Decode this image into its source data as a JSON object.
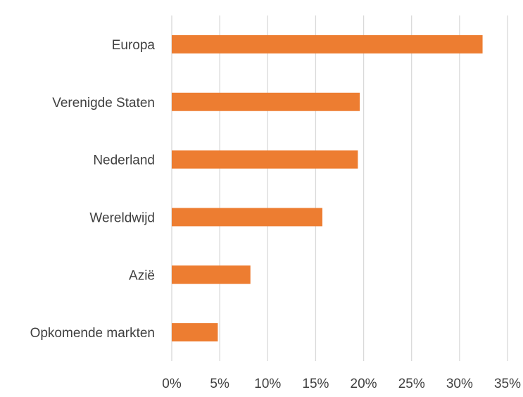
{
  "chart_data": {
    "type": "bar",
    "orientation": "horizontal",
    "categories": [
      "Europa",
      "Verenigde Staten",
      "Nederland",
      "Wereldwijd",
      "Azië",
      "Opkomende markten"
    ],
    "series": [
      {
        "values": [
          32.4,
          19.6,
          19.4,
          15.7,
          8.2,
          4.8
        ]
      }
    ],
    "title": "",
    "xlabel": "",
    "ylabel": "",
    "xlim": [
      0,
      35
    ],
    "xticks": [
      0,
      5,
      10,
      15,
      20,
      25,
      30,
      35
    ],
    "tick_labels": [
      "0%",
      "5%",
      "10%",
      "15%",
      "20%",
      "25%",
      "30%",
      "35%"
    ],
    "grid": "vertical",
    "legend": "none",
    "colors": {
      "bar": "#ED7D31",
      "grid": "#D9D9D9",
      "text": "#404040"
    }
  }
}
